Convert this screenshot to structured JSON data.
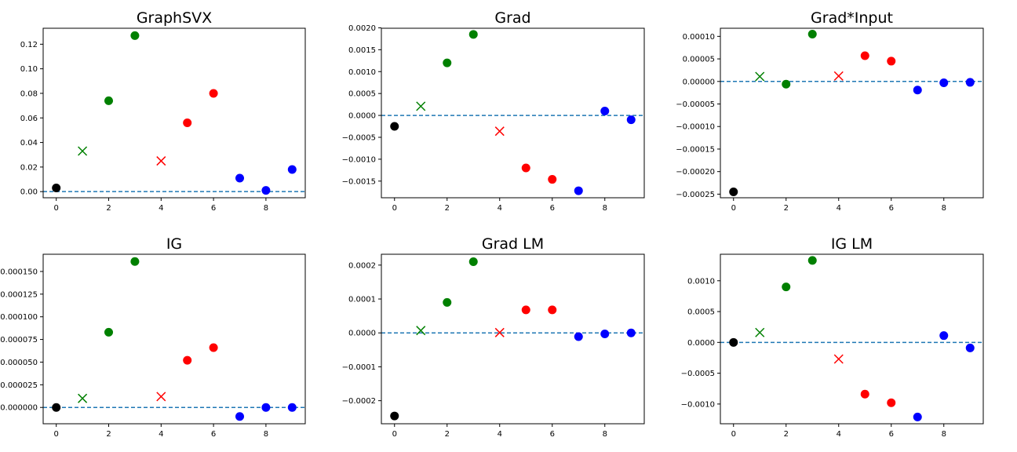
{
  "chart_data": [
    {
      "type": "scatter",
      "title": "GraphSVX",
      "x": [
        0,
        1,
        2,
        3,
        4,
        5,
        6,
        7,
        8,
        9
      ],
      "y": [
        0.003,
        0.033,
        0.074,
        0.127,
        0.025,
        0.056,
        0.08,
        0.011,
        0.001,
        0.018
      ],
      "markers": [
        "dot",
        "x",
        "dot",
        "dot",
        "x",
        "dot",
        "dot",
        "dot",
        "dot",
        "dot"
      ],
      "colors": [
        "#000000",
        "#008000",
        "#008000",
        "#008000",
        "#ff0000",
        "#ff0000",
        "#ff0000",
        "#0000ff",
        "#0000ff",
        "#0000ff"
      ],
      "xlim": [
        -0.5,
        9.5
      ],
      "ylim": [
        -0.005,
        0.133
      ],
      "xticks": [
        0,
        2,
        4,
        6,
        8
      ],
      "xtick_labels": [
        "0",
        "2",
        "4",
        "6",
        "8"
      ],
      "yticks": [
        0.0,
        0.02,
        0.04,
        0.06,
        0.08,
        0.1,
        0.12
      ],
      "ytick_labels": [
        "0.00",
        "0.02",
        "0.04",
        "0.06",
        "0.08",
        "0.10",
        "0.12"
      ],
      "baseline": 0,
      "grid": false
    },
    {
      "type": "scatter",
      "title": "Grad",
      "x": [
        0,
        1,
        2,
        3,
        4,
        5,
        6,
        7,
        8,
        9
      ],
      "y": [
        -0.00025,
        0.00021,
        0.0012,
        0.00185,
        -0.00036,
        -0.0012,
        -0.00146,
        -0.00172,
        0.0001,
        -0.0001
      ],
      "markers": [
        "dot",
        "x",
        "dot",
        "dot",
        "x",
        "dot",
        "dot",
        "dot",
        "dot",
        "dot"
      ],
      "colors": [
        "#000000",
        "#008000",
        "#008000",
        "#008000",
        "#ff0000",
        "#ff0000",
        "#ff0000",
        "#0000ff",
        "#0000ff",
        "#0000ff"
      ],
      "xlim": [
        -0.5,
        9.5
      ],
      "ylim": [
        -0.00188,
        0.00199
      ],
      "xticks": [
        0,
        2,
        4,
        6,
        8
      ],
      "xtick_labels": [
        "0",
        "2",
        "4",
        "6",
        "8"
      ],
      "yticks": [
        -0.0015,
        -0.001,
        -0.0005,
        0.0,
        0.0005,
        0.001,
        0.0015,
        0.002
      ],
      "ytick_labels": [
        "−0.0015",
        "−0.0010",
        "−0.0005",
        "0.0000",
        "0.0005",
        "0.0010",
        "0.0015",
        "0.0020"
      ],
      "baseline": 0,
      "grid": false
    },
    {
      "type": "scatter",
      "title": "Grad*Input",
      "x": [
        0,
        1,
        2,
        3,
        4,
        5,
        6,
        7,
        8,
        9
      ],
      "y": [
        -0.000245,
        1.1e-05,
        -6e-06,
        0.000105,
        1.2e-05,
        5.7e-05,
        4.5e-05,
        -1.9e-05,
        -3e-06,
        -2e-06
      ],
      "markers": [
        "dot",
        "x",
        "dot",
        "dot",
        "x",
        "dot",
        "dot",
        "dot",
        "dot",
        "dot"
      ],
      "colors": [
        "#000000",
        "#008000",
        "#008000",
        "#008000",
        "#ff0000",
        "#ff0000",
        "#ff0000",
        "#0000ff",
        "#0000ff",
        "#0000ff"
      ],
      "xlim": [
        -0.5,
        9.5
      ],
      "ylim": [
        -0.000258,
        0.000118
      ],
      "xticks": [
        0,
        2,
        4,
        6,
        8
      ],
      "xtick_labels": [
        "0",
        "2",
        "4",
        "6",
        "8"
      ],
      "yticks": [
        -0.00025,
        -0.0002,
        -0.00015,
        -0.0001,
        -5e-05,
        0.0,
        5e-05,
        0.0001
      ],
      "ytick_labels": [
        "−0.00025",
        "−0.00020",
        "−0.00015",
        "−0.00010",
        "−0.00005",
        "0.00000",
        "0.00005",
        "0.00010"
      ],
      "baseline": 0,
      "grid": false
    },
    {
      "type": "scatter",
      "title": "IG",
      "x": [
        0,
        1,
        2,
        3,
        4,
        5,
        6,
        7,
        8,
        9
      ],
      "y": [
        0.0,
        1e-05,
        8.3e-05,
        0.000161,
        1.2e-05,
        5.2e-05,
        6.6e-05,
        -1e-05,
        0.0,
        0.0
      ],
      "markers": [
        "dot",
        "x",
        "dot",
        "dot",
        "x",
        "dot",
        "dot",
        "dot",
        "dot",
        "dot"
      ],
      "colors": [
        "#000000",
        "#008000",
        "#008000",
        "#008000",
        "#ff0000",
        "#ff0000",
        "#ff0000",
        "#0000ff",
        "#0000ff",
        "#0000ff"
      ],
      "xlim": [
        -0.5,
        9.5
      ],
      "ylim": [
        -1.8e-05,
        0.000169
      ],
      "xticks": [
        0,
        2,
        4,
        6,
        8
      ],
      "xtick_labels": [
        "0",
        "2",
        "4",
        "6",
        "8"
      ],
      "yticks": [
        0.0,
        2.5e-05,
        5e-05,
        7.5e-05,
        0.0001,
        0.000125,
        0.00015
      ],
      "ytick_labels": [
        "0.000000",
        "0.000025",
        "0.000050",
        "0.000075",
        "0.000100",
        "0.000125",
        "0.000150"
      ],
      "baseline": 0,
      "grid": false
    },
    {
      "type": "scatter",
      "title": "Grad LM",
      "x": [
        0,
        1,
        2,
        3,
        4,
        5,
        6,
        7,
        8,
        9
      ],
      "y": [
        -0.000245,
        7e-06,
        9e-05,
        0.00021,
        1e-06,
        6.8e-05,
        6.8e-05,
        -1.1e-05,
        -3e-06,
        0.0
      ],
      "markers": [
        "dot",
        "x",
        "dot",
        "dot",
        "x",
        "dot",
        "dot",
        "dot",
        "dot",
        "dot"
      ],
      "colors": [
        "#000000",
        "#008000",
        "#008000",
        "#008000",
        "#ff0000",
        "#ff0000",
        "#ff0000",
        "#0000ff",
        "#0000ff",
        "#0000ff"
      ],
      "xlim": [
        -0.5,
        9.5
      ],
      "ylim": [
        -0.000268,
        0.000232
      ],
      "xticks": [
        0,
        2,
        4,
        6,
        8
      ],
      "xtick_labels": [
        "0",
        "2",
        "4",
        "6",
        "8"
      ],
      "yticks": [
        -0.0002,
        -0.0001,
        0.0,
        0.0001,
        0.0002
      ],
      "ytick_labels": [
        "−0.0002",
        "−0.0001",
        "0.0000",
        "0.0001",
        "0.0002"
      ],
      "baseline": 0,
      "grid": false
    },
    {
      "type": "scatter",
      "title": "IG LM",
      "x": [
        0,
        1,
        2,
        3,
        4,
        5,
        6,
        7,
        8,
        9
      ],
      "y": [
        0.0,
        0.00016,
        0.0009,
        0.00133,
        -0.00027,
        -0.00084,
        -0.00098,
        -0.00121,
        0.00011,
        -9e-05
      ],
      "markers": [
        "dot",
        "x",
        "dot",
        "dot",
        "x",
        "dot",
        "dot",
        "dot",
        "dot",
        "dot"
      ],
      "colors": [
        "#000000",
        "#008000",
        "#008000",
        "#008000",
        "#ff0000",
        "#ff0000",
        "#ff0000",
        "#0000ff",
        "#0000ff",
        "#0000ff"
      ],
      "xlim": [
        -0.5,
        9.5
      ],
      "ylim": [
        -0.00132,
        0.00143
      ],
      "xticks": [
        0,
        2,
        4,
        6,
        8
      ],
      "xtick_labels": [
        "0",
        "2",
        "4",
        "6",
        "8"
      ],
      "yticks": [
        -0.001,
        -0.0005,
        0.0,
        0.0005,
        0.001
      ],
      "ytick_labels": [
        "−0.0010",
        "−0.0005",
        "0.0000",
        "0.0005",
        "0.0010"
      ],
      "baseline": 0,
      "grid": false
    }
  ]
}
